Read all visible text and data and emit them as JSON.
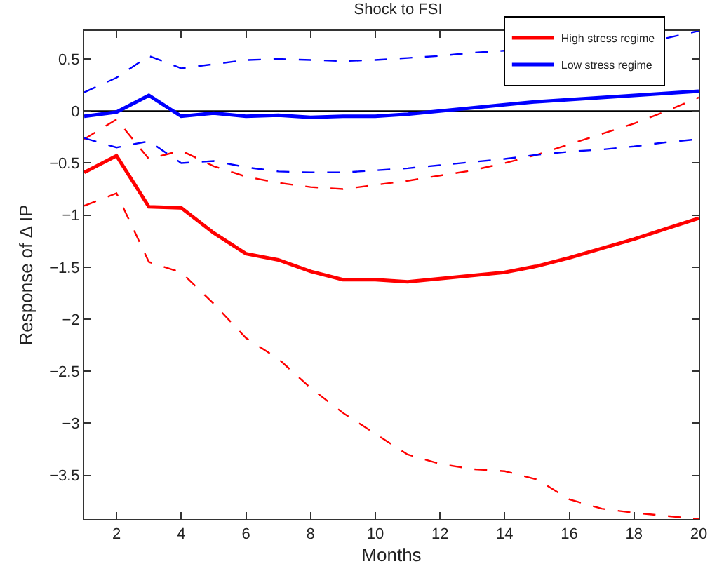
{
  "chart_data": {
    "type": "line",
    "title": "Shock to FSI",
    "xlabel": "Months",
    "ylabel": "Response of Δ IP",
    "x": [
      1,
      2,
      3,
      4,
      5,
      6,
      7,
      8,
      9,
      10,
      11,
      12,
      13,
      14,
      15,
      16,
      17,
      18,
      19,
      20
    ],
    "series": [
      {
        "name": "High stress regime",
        "color": "#ff0000",
        "line_style": "solid",
        "values": [
          -0.59,
          -0.43,
          -0.92,
          -0.93,
          -1.17,
          -1.37,
          -1.43,
          -1.54,
          -1.62,
          -1.62,
          -1.64,
          -1.61,
          -1.58,
          -1.55,
          -1.49,
          -1.41,
          -1.32,
          -1.23,
          -1.13,
          -1.03
        ]
      },
      {
        "name": "Low stress regime",
        "color": "#0000ff",
        "line_style": "solid",
        "values": [
          -0.05,
          -0.01,
          0.15,
          -0.05,
          -0.02,
          -0.05,
          -0.04,
          -0.06,
          -0.05,
          -0.05,
          -0.03,
          0.0,
          0.03,
          0.06,
          0.09,
          0.11,
          0.13,
          0.15,
          0.17,
          0.19
        ]
      },
      {
        "color": "#ff0000",
        "line_style": "dashed",
        "values": [
          -0.27,
          -0.08,
          -0.46,
          -0.38,
          -0.53,
          -0.63,
          -0.69,
          -0.73,
          -0.75,
          -0.71,
          -0.67,
          -0.62,
          -0.57,
          -0.5,
          -0.42,
          -0.32,
          -0.22,
          -0.12,
          0.0,
          0.13
        ]
      },
      {
        "color": "#ff0000",
        "line_style": "dashed",
        "values": [
          -0.91,
          -0.79,
          -1.45,
          -1.55,
          -1.85,
          -2.18,
          -2.38,
          -2.66,
          -2.9,
          -3.1,
          -3.3,
          -3.39,
          -3.44,
          -3.46,
          -3.54,
          -3.73,
          -3.82,
          -3.86,
          -3.89,
          -3.92
        ]
      },
      {
        "color": "#0000ff",
        "line_style": "dashed",
        "values": [
          0.18,
          0.32,
          0.53,
          0.41,
          0.45,
          0.49,
          0.5,
          0.49,
          0.48,
          0.49,
          0.51,
          0.53,
          0.56,
          0.58,
          null,
          null,
          null,
          null,
          0.7,
          0.77
        ]
      },
      {
        "color": "#0000ff",
        "line_style": "dashed",
        "values": [
          -0.26,
          -0.35,
          -0.29,
          -0.5,
          -0.48,
          -0.54,
          -0.58,
          -0.59,
          -0.59,
          -0.57,
          -0.55,
          -0.52,
          -0.49,
          -0.46,
          -0.42,
          -0.39,
          -0.37,
          -0.34,
          -0.3,
          -0.27
        ]
      }
    ],
    "xlim": [
      1,
      20
    ],
    "xticks": [
      2,
      4,
      6,
      8,
      10,
      12,
      14,
      16,
      18,
      20
    ],
    "ylim": [
      -3.92,
      0.77
    ],
    "yticks": [
      -3.5,
      -3,
      -2.5,
      -2,
      -1.5,
      -1,
      -0.5,
      0,
      0.5
    ],
    "ref_lines": [
      {
        "axis": "y",
        "value": 0,
        "color": "#000000",
        "line_style": "solid"
      }
    ],
    "grid": false,
    "legend": "top right",
    "marker": "none"
  }
}
